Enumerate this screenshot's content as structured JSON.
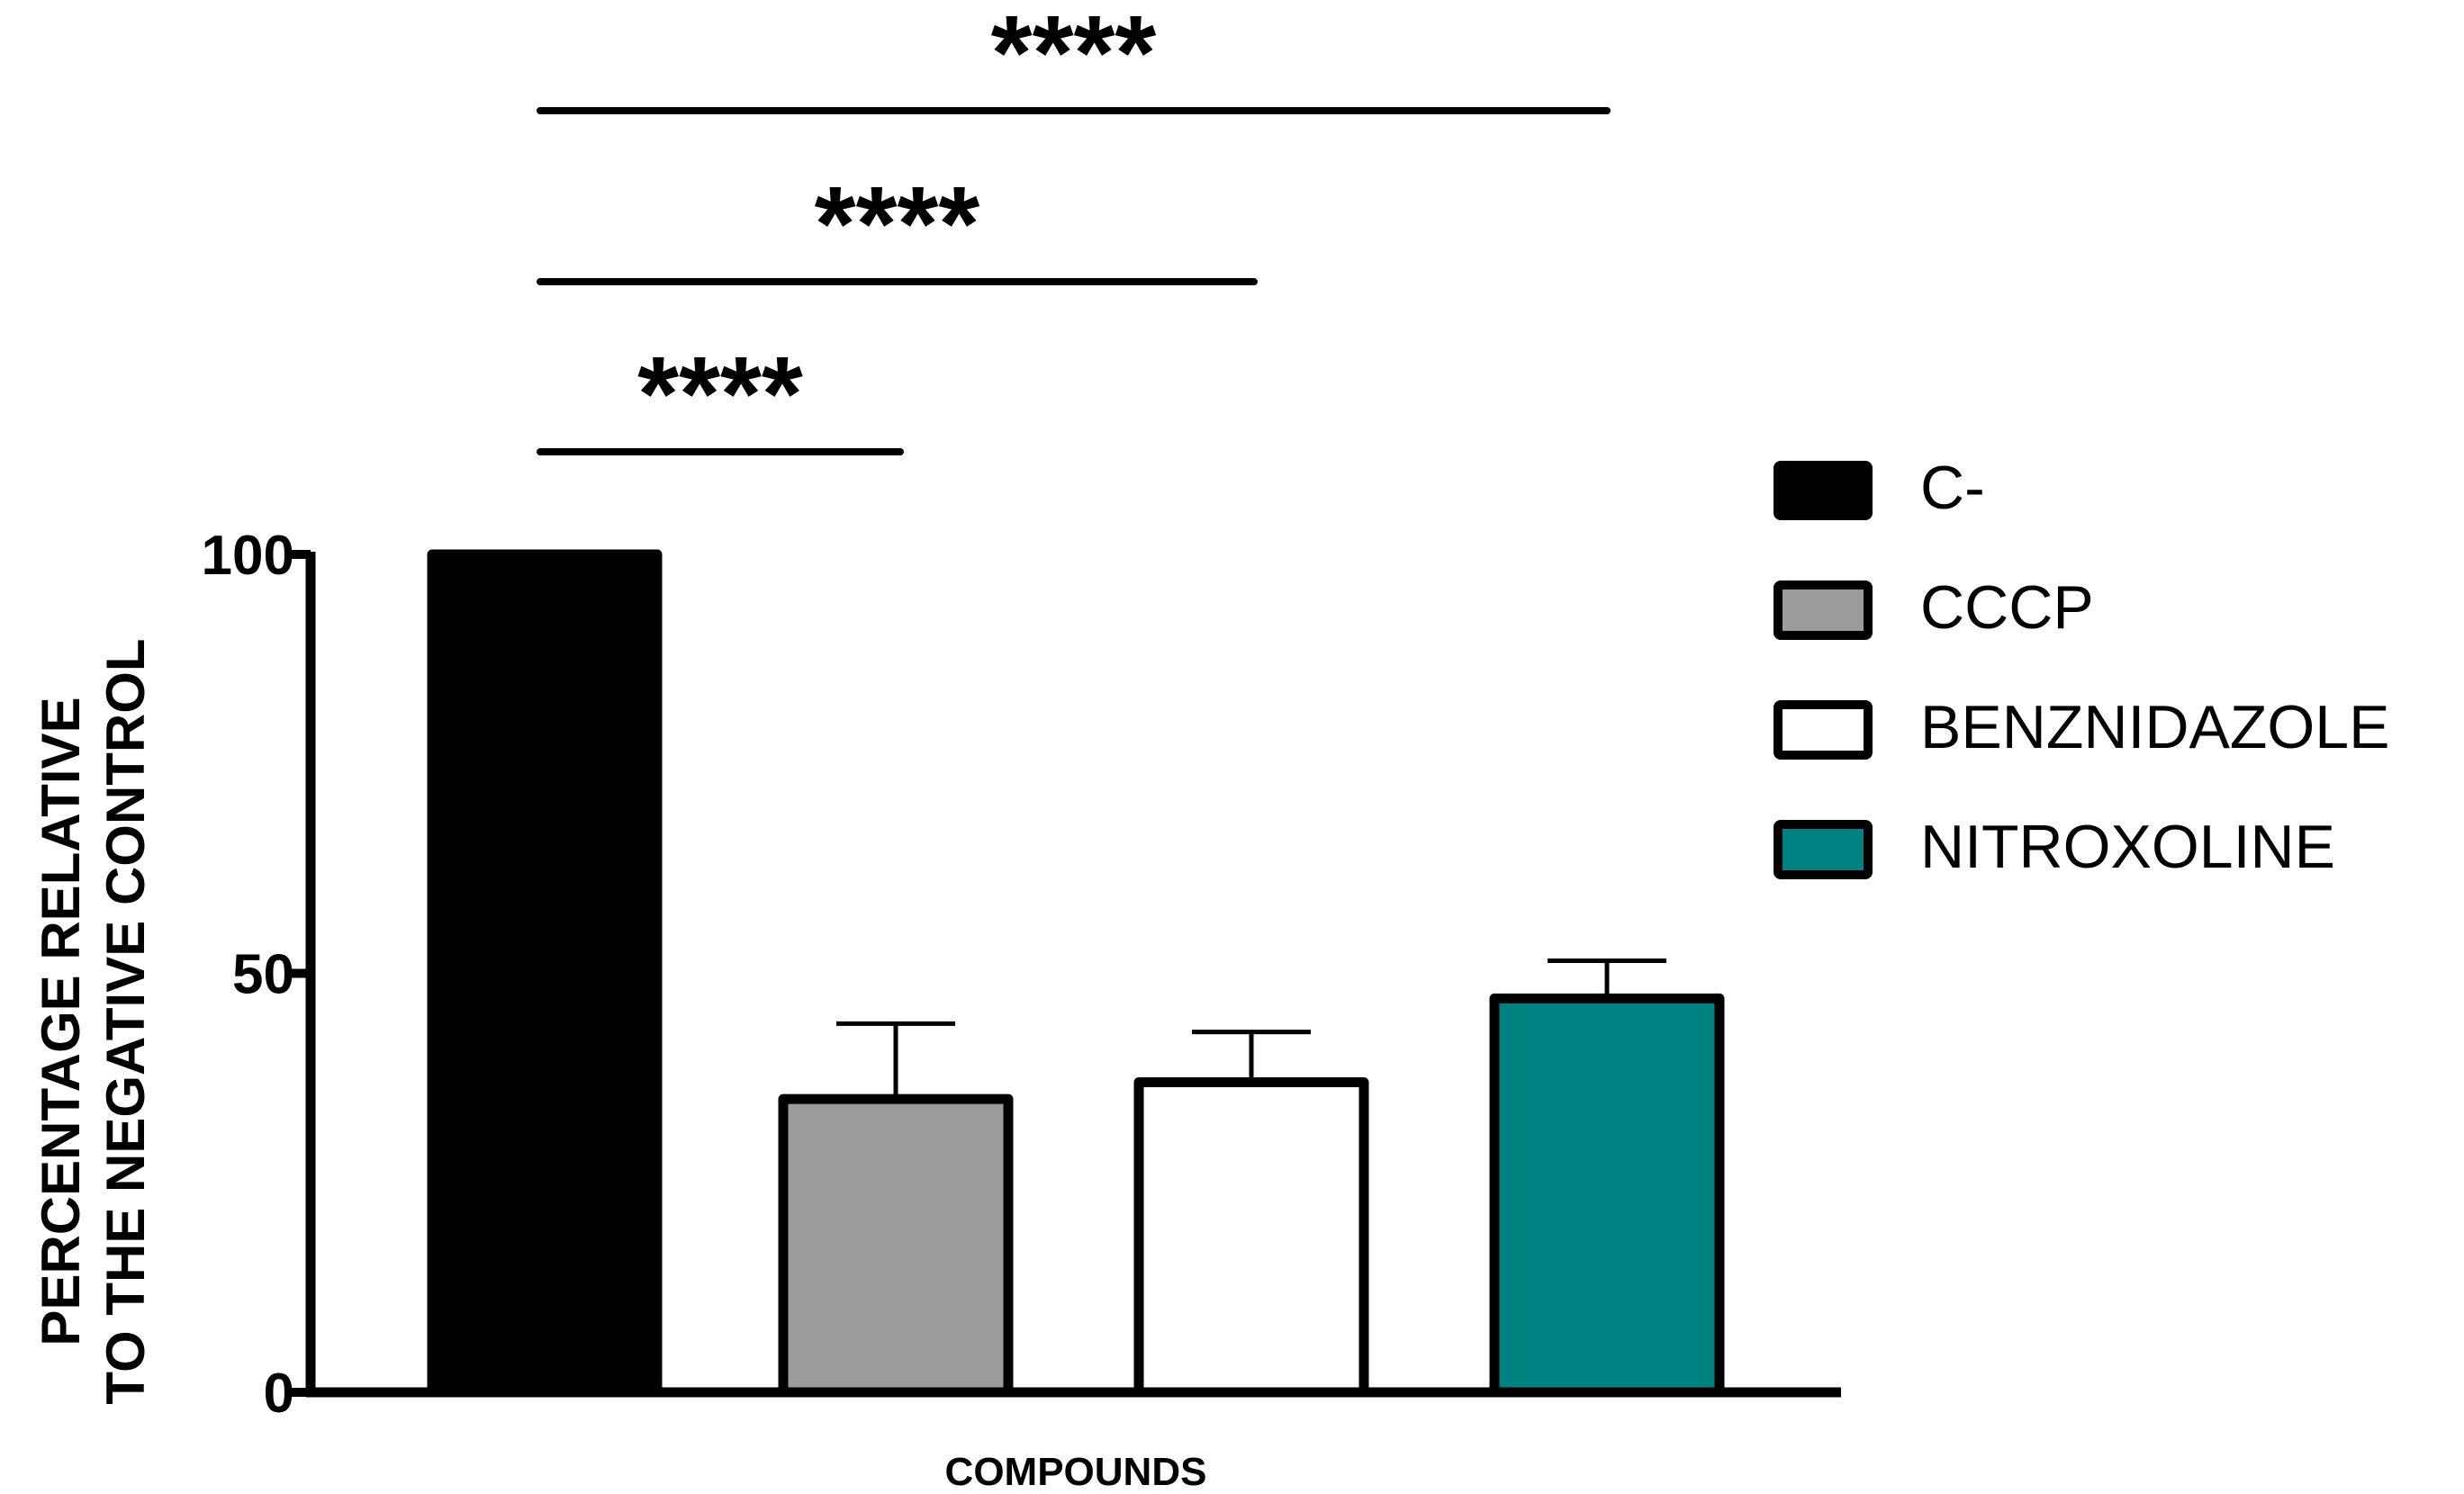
{
  "chart_data": {
    "type": "bar",
    "title": "",
    "xlabel": "COMPOUNDS",
    "ylabel_line1": "PERCENTAGE RELATIVE",
    "ylabel_line2": "TO THE NEGATIVE CONTROL",
    "ylim": [
      0,
      100
    ],
    "yticks": [
      "0",
      "50",
      "100"
    ],
    "grid": false,
    "legend_position": "right",
    "categories": [
      "C-",
      "CCCP",
      "BENZNIDAZOLE",
      "NITROXOLINE"
    ],
    "values": [
      100,
      35,
      37,
      47
    ],
    "errors": [
      0,
      9,
      6,
      4.5
    ],
    "colors": [
      "#000000",
      "#9b9b9b",
      "#ffffff",
      "#008080"
    ],
    "significance": [
      {
        "from": "C-",
        "to": "CCCP",
        "label": "****"
      },
      {
        "from": "C-",
        "to": "BENZNIDAZOLE",
        "label": "****"
      },
      {
        "from": "C-",
        "to": "NITROXOLINE",
        "label": "****"
      }
    ]
  }
}
